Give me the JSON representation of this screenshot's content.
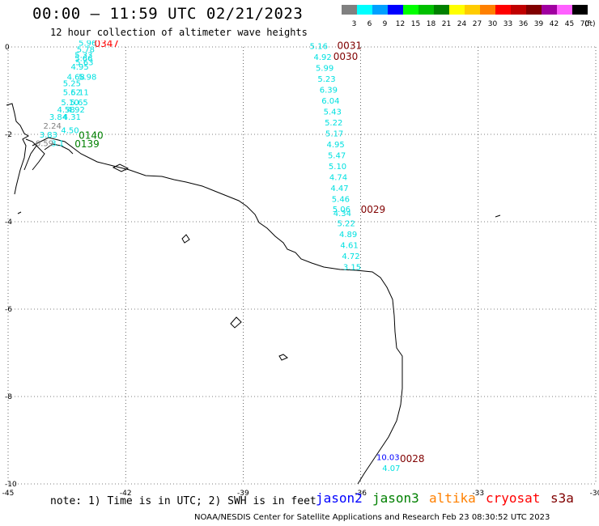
{
  "header": {
    "title": "00:00 – 11:59 UTC 02/21/2023",
    "subtitle": "12 hour collection of altimeter wave heights"
  },
  "legend": {
    "unit": "(ft)",
    "bins": [
      {
        "label": "3",
        "color": "#808080"
      },
      {
        "label": "6",
        "color": "#00ffff"
      },
      {
        "label": "9",
        "color": "#00a0ff"
      },
      {
        "label": "12",
        "color": "#0000ff"
      },
      {
        "label": "15",
        "color": "#00ff00"
      },
      {
        "label": "18",
        "color": "#00c000"
      },
      {
        "label": "21",
        "color": "#008000"
      },
      {
        "label": "24",
        "color": "#ffff00"
      },
      {
        "label": "27",
        "color": "#ffcc00"
      },
      {
        "label": "30",
        "color": "#ff8000"
      },
      {
        "label": "33",
        "color": "#ff0000"
      },
      {
        "label": "36",
        "color": "#c00000"
      },
      {
        "label": "39",
        "color": "#800000"
      },
      {
        "label": "42",
        "color": "#a000a0"
      },
      {
        "label": "45",
        "color": "#ff60ff"
      },
      {
        "label": "70",
        "color": "#000000"
      }
    ]
  },
  "map": {
    "x_range": [
      -45,
      -30
    ],
    "y_range": [
      -10,
      0
    ],
    "x_ticks": [
      "-45",
      "-42",
      "-39",
      "-36",
      "-33",
      "-30"
    ],
    "y_ticks": [
      "0",
      "-2",
      "-4",
      "-6",
      "-8",
      "-10"
    ],
    "grid": "dotted"
  },
  "tracks": [
    {
      "time": "0347",
      "time_color": "#ff0000",
      "lon": -42.8,
      "lat": 0.0
    },
    {
      "time": "0140",
      "time_color": "#008000",
      "lon": -43.2,
      "lat": -2.1
    },
    {
      "time": "0139",
      "time_color": "#008000",
      "lon": -43.3,
      "lat": -2.3
    },
    {
      "time": "0031",
      "time_color": "#800000",
      "lon": -36.6,
      "lat": -0.05
    },
    {
      "time": "0030",
      "time_color": "#800000",
      "lon": -36.7,
      "lat": -0.3
    },
    {
      "time": "0029",
      "time_color": "#800000",
      "lon": -36.0,
      "lat": -3.8
    },
    {
      "time": "0028",
      "time_color": "#800000",
      "lon": -35.0,
      "lat": -9.5
    }
  ],
  "swh": [
    {
      "v": "5.96",
      "lon": -43.2,
      "lat": 0.03,
      "color": "#00e0e0"
    },
    {
      "v": "5.78",
      "lon": -43.25,
      "lat": -0.12,
      "color": "#00e0e0"
    },
    {
      "v": "5.33",
      "lon": -43.3,
      "lat": -0.25,
      "color": "#00e0e0"
    },
    {
      "v": "5.66",
      "lon": -43.3,
      "lat": -0.32,
      "color": "#00e0e0"
    },
    {
      "v": "5.63",
      "lon": -43.28,
      "lat": -0.42,
      "color": "#00e0e0"
    },
    {
      "v": "4.95",
      "lon": -43.4,
      "lat": -0.52,
      "color": "#00e0e0"
    },
    {
      "v": "4.68",
      "lon": -43.5,
      "lat": -0.75,
      "color": "#00e0e0"
    },
    {
      "v": "5.98",
      "lon": -43.2,
      "lat": -0.75,
      "color": "#00e0e0"
    },
    {
      "v": "5.25",
      "lon": -43.6,
      "lat": -0.9,
      "color": "#00e0e0"
    },
    {
      "v": "5.62",
      "lon": -43.6,
      "lat": -1.1,
      "color": "#00e0e0"
    },
    {
      "v": "5.11",
      "lon": -43.4,
      "lat": -1.1,
      "color": "#00e0e0"
    },
    {
      "v": "5.10",
      "lon": -43.65,
      "lat": -1.33,
      "color": "#00e0e0"
    },
    {
      "v": "5.65",
      "lon": -43.42,
      "lat": -1.33,
      "color": "#00e0e0"
    },
    {
      "v": "4.58",
      "lon": -43.75,
      "lat": -1.5,
      "color": "#00e0e0"
    },
    {
      "v": "4.92",
      "lon": -43.5,
      "lat": -1.5,
      "color": "#00e0e0"
    },
    {
      "v": "3.84",
      "lon": -43.95,
      "lat": -1.67,
      "color": "#00e0e0"
    },
    {
      "v": "4.31",
      "lon": -43.6,
      "lat": -1.67,
      "color": "#00e0e0"
    },
    {
      "v": "2.24",
      "lon": -44.1,
      "lat": -1.87,
      "color": "#808080"
    },
    {
      "v": "4.50",
      "lon": -43.65,
      "lat": -1.97,
      "color": "#00e0e0"
    },
    {
      "v": "3.83",
      "lon": -44.2,
      "lat": -2.07,
      "color": "#00e0e0"
    },
    {
      "v": "0.59",
      "lon": -44.3,
      "lat": -2.27,
      "color": "#808080"
    },
    {
      "v": "3.1",
      "lon": -43.9,
      "lat": -2.27,
      "color": "#00e0e0"
    },
    {
      "v": "5.16",
      "lon": -37.3,
      "lat": -0.05,
      "color": "#00e0e0"
    },
    {
      "v": "4.92",
      "lon": -37.2,
      "lat": -0.3,
      "color": "#00e0e0"
    },
    {
      "v": "5.99",
      "lon": -37.15,
      "lat": -0.55,
      "color": "#00e0e0"
    },
    {
      "v": "5.23",
      "lon": -37.1,
      "lat": -0.8,
      "color": "#00e0e0"
    },
    {
      "v": "6.39",
      "lon": -37.05,
      "lat": -1.05,
      "color": "#00e0e0"
    },
    {
      "v": "6.04",
      "lon": -37.0,
      "lat": -1.3,
      "color": "#00e0e0"
    },
    {
      "v": "5.43",
      "lon": -36.95,
      "lat": -1.55,
      "color": "#00e0e0"
    },
    {
      "v": "5.22",
      "lon": -36.92,
      "lat": -1.8,
      "color": "#00e0e0"
    },
    {
      "v": "5.17",
      "lon": -36.9,
      "lat": -2.05,
      "color": "#00e0e0"
    },
    {
      "v": "4.95",
      "lon": -36.87,
      "lat": -2.3,
      "color": "#00e0e0"
    },
    {
      "v": "5.47",
      "lon": -36.84,
      "lat": -2.55,
      "color": "#00e0e0"
    },
    {
      "v": "5.10",
      "lon": -36.82,
      "lat": -2.8,
      "color": "#00e0e0"
    },
    {
      "v": "4.74",
      "lon": -36.8,
      "lat": -3.05,
      "color": "#00e0e0"
    },
    {
      "v": "4.47",
      "lon": -36.77,
      "lat": -3.3,
      "color": "#00e0e0"
    },
    {
      "v": "5.46",
      "lon": -36.74,
      "lat": -3.55,
      "color": "#00e0e0"
    },
    {
      "v": "5.06",
      "lon": -36.72,
      "lat": -3.78,
      "color": "#00e0e0"
    },
    {
      "v": "4.34",
      "lon": -36.7,
      "lat": -3.87,
      "color": "#00e0e0"
    },
    {
      "v": "5.22",
      "lon": -36.6,
      "lat": -4.1,
      "color": "#00e0e0"
    },
    {
      "v": "4.89",
      "lon": -36.55,
      "lat": -4.35,
      "color": "#00e0e0"
    },
    {
      "v": "4.61",
      "lon": -36.52,
      "lat": -4.6,
      "color": "#00e0e0"
    },
    {
      "v": "4.72",
      "lon": -36.48,
      "lat": -4.85,
      "color": "#00e0e0"
    },
    {
      "v": "3.15",
      "lon": -36.45,
      "lat": -5.1,
      "color": "#00e0e0"
    },
    {
      "v": "10.03",
      "lon": -35.6,
      "lat": -9.45,
      "color": "#0000ff"
    },
    {
      "v": "4.07",
      "lon": -35.45,
      "lat": -9.7,
      "color": "#00e0e0"
    }
  ],
  "footer": {
    "note": "note: 1) Time is in UTC; 2) SWH is in feet",
    "satellites": [
      {
        "name": "jason2",
        "color": "#0000ff"
      },
      {
        "name": "jason3",
        "color": "#008000"
      },
      {
        "name": "altika",
        "color": "#ff8000"
      },
      {
        "name": "cryosat",
        "color": "#ff0000"
      },
      {
        "name": "s3a",
        "color": "#800000"
      }
    ],
    "credit": "NOAA/NESDIS Center for Satellite Applications and Research   Feb 23 08:30:52 UTC 2023"
  }
}
